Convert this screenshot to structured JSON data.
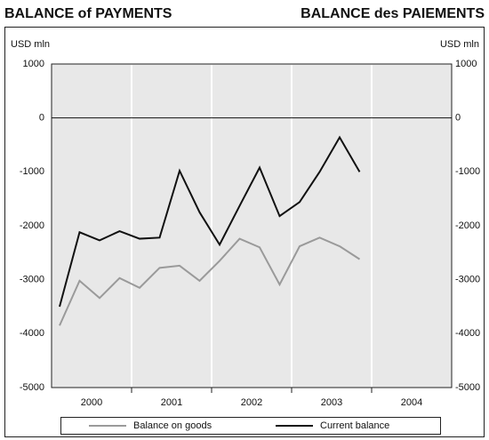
{
  "chart_data": {
    "type": "line",
    "title": "BALANCE of PAYMENTS",
    "title_fr": "BALANCE des PAIEMENTS",
    "y_label": "USD mln",
    "y2_label": "USD mln",
    "x": [
      2000.1,
      2000.35,
      2000.6,
      2000.85,
      2001.1,
      2001.35,
      2001.6,
      2001.85,
      2002.1,
      2002.35,
      2002.6,
      2002.85,
      2003.1,
      2003.35,
      2003.6,
      2003.85
    ],
    "xlim": [
      2000,
      2005
    ],
    "xticks": [
      {
        "value": 2000.5,
        "label": "2000"
      },
      {
        "value": 2001.5,
        "label": "2001"
      },
      {
        "value": 2002.5,
        "label": "2002"
      },
      {
        "value": 2003.5,
        "label": "2003"
      },
      {
        "value": 2004.5,
        "label": "2004"
      }
    ],
    "xgrid": [
      2001,
      2002,
      2003,
      2004
    ],
    "ylim": [
      -5000,
      1000
    ],
    "yticks": [
      -5000,
      -4000,
      -3000,
      -2000,
      -1000,
      0,
      1000
    ],
    "series": [
      {
        "name": "Balance on goods",
        "color": "#9a9a9a",
        "values": [
          -3850,
          -3020,
          -3340,
          -2970,
          -3150,
          -2780,
          -2740,
          -3020,
          -2650,
          -2240,
          -2400,
          -3090,
          -2380,
          -2220,
          -2380,
          -2620
        ]
      },
      {
        "name": "Current balance",
        "color": "#111111",
        "values": [
          -3500,
          -2120,
          -2270,
          -2100,
          -2240,
          -2220,
          -980,
          -1750,
          -2350,
          -1630,
          -920,
          -1820,
          -1560,
          -1000,
          -360,
          -1000
        ]
      }
    ],
    "grid": true
  }
}
